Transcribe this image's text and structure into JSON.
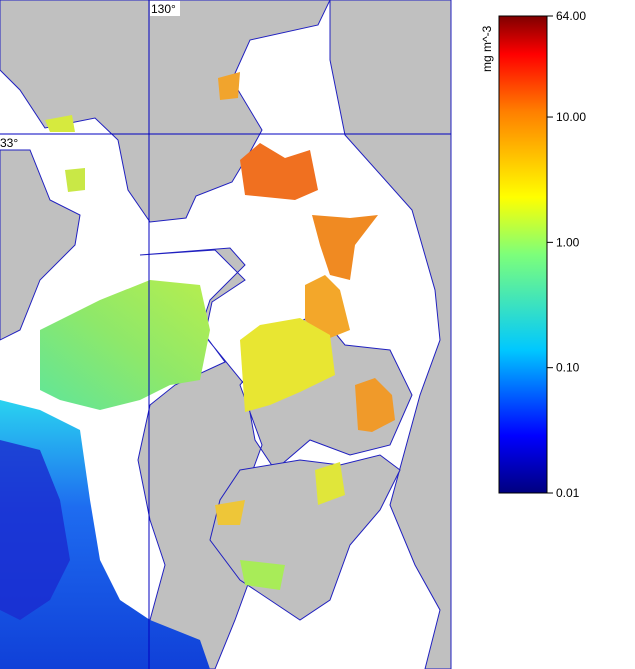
{
  "map": {
    "graticule": {
      "lon_label": "130°",
      "lat_label": "33°"
    },
    "colorbar": {
      "label": "mg m^-3",
      "scale": "log",
      "lim": [
        0.01,
        64
      ],
      "ticks": [
        {
          "value": 0.01,
          "label": "0.01"
        },
        {
          "value": 0.1,
          "label": "0.10"
        },
        {
          "value": 1,
          "label": "1.00"
        },
        {
          "value": 10,
          "label": "10.00"
        },
        {
          "value": 64,
          "label": "64.00"
        }
      ]
    }
  }
}
